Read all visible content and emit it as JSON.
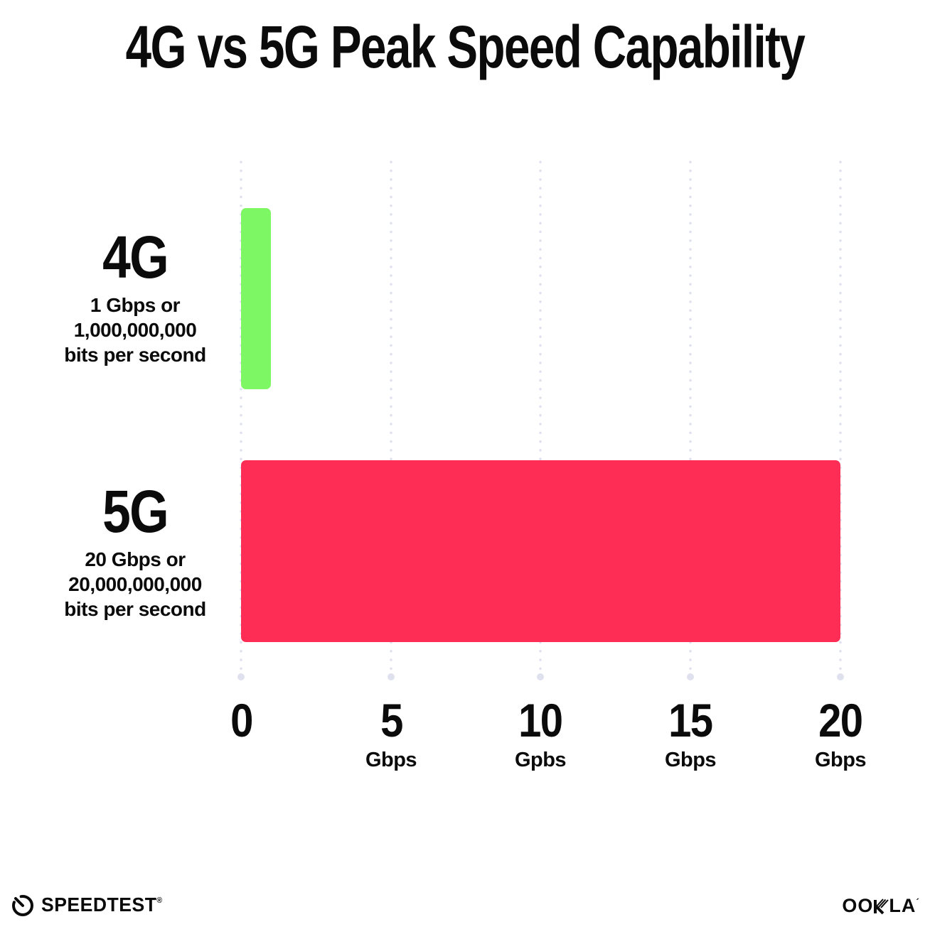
{
  "title": "4G vs 5G Peak Speed Capability",
  "chart_data": {
    "type": "bar",
    "orientation": "horizontal",
    "title": "4G vs 5G Peak Speed Capability",
    "categories": [
      "4G",
      "5G"
    ],
    "values": [
      1,
      20
    ],
    "value_unit": "Gbps",
    "xlim": [
      0,
      20
    ],
    "grid": "vertical-dotted",
    "legend": "none",
    "series_colors": [
      "#7DF763",
      "#FD2D55"
    ],
    "bar_labels": [
      {
        "name": "4G",
        "lines": [
          "1 Gbps or",
          "1,000,000,000",
          "bits per second"
        ]
      },
      {
        "name": "5G",
        "lines": [
          "20 Gbps or",
          "20,000,000,000",
          "bits per second"
        ]
      }
    ],
    "x_ticks": [
      {
        "value": "0",
        "unit": ""
      },
      {
        "value": "5",
        "unit": "Gbps"
      },
      {
        "value": "10",
        "unit": "Gpbs"
      },
      {
        "value": "15",
        "unit": "Gbps"
      },
      {
        "value": "20",
        "unit": "Gbps"
      }
    ]
  },
  "colors": {
    "bar_4g": "#7DF763",
    "bar_5g": "#FD2D55",
    "gridline": "#DFE1EE",
    "text": "#0B0B0B",
    "background": "#FFFFFF"
  },
  "footer": {
    "speedtest_label": "SPEEDTEST",
    "speedtest_tm": "®",
    "ookla_left": "OO",
    "ookla_right": "LA",
    "ookla_tm": "´"
  }
}
